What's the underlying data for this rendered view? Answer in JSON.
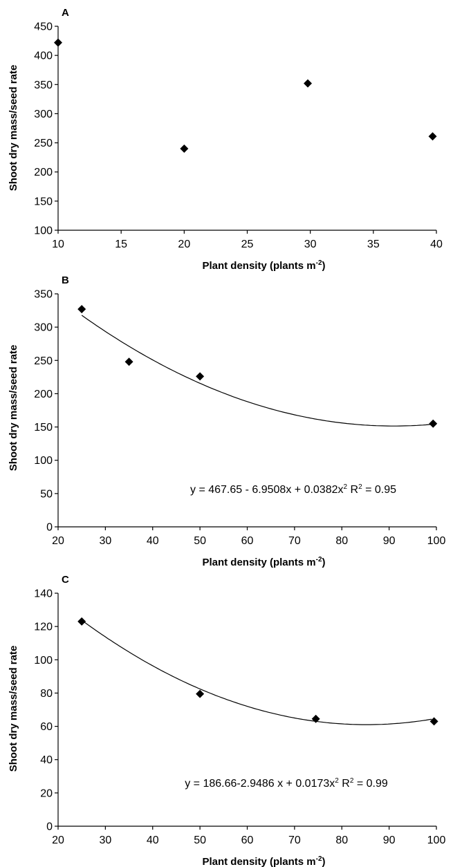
{
  "chart_data": [
    {
      "type": "scatter",
      "panel_label": "A",
      "xlabel": "Plant density (plants m",
      "xlabel_sup": "-2",
      "xlabel_end": ")",
      "ylabel": "Shoot dry mass/seed rate",
      "xlim": [
        10,
        40
      ],
      "ylim": [
        100,
        450
      ],
      "xticks": [
        10,
        15,
        20,
        25,
        30,
        35,
        40
      ],
      "yticks": [
        100,
        150,
        200,
        250,
        300,
        350,
        400,
        450
      ],
      "points": [
        {
          "x": 10,
          "y": 422
        },
        {
          "x": 20,
          "y": 240
        },
        {
          "x": 29.8,
          "y": 352
        },
        {
          "x": 39.7,
          "y": 261
        }
      ],
      "grid": false,
      "legend": "none"
    },
    {
      "type": "scatter",
      "panel_label": "B",
      "xlabel": "Plant density (plants m",
      "xlabel_sup": "-2",
      "xlabel_end": ")",
      "ylabel": "Shoot dry mass/seed rate",
      "xlim": [
        20,
        100
      ],
      "ylim": [
        0,
        350
      ],
      "xticks": [
        20,
        30,
        40,
        50,
        60,
        70,
        80,
        90,
        100
      ],
      "yticks": [
        0,
        50,
        100,
        150,
        200,
        250,
        300,
        350
      ],
      "points": [
        {
          "x": 25,
          "y": 327
        },
        {
          "x": 35,
          "y": 248
        },
        {
          "x": 50,
          "y": 226
        },
        {
          "x": 99.3,
          "y": 155
        }
      ],
      "fit": {
        "a": 467.65,
        "b": -6.9508,
        "c": 0.0382,
        "x_from": 25,
        "x_to": 99
      },
      "equation_parts": [
        "y = 467.65 - 6.9508x + 0.0382x",
        "2",
        " R",
        "2",
        " = 0.95"
      ],
      "grid": false,
      "legend": "none"
    },
    {
      "type": "scatter",
      "panel_label": "C",
      "xlabel": "Plant density (plants m",
      "xlabel_sup": "-2",
      "xlabel_end": ")",
      "ylabel": "Shoot dry mass/seed rate",
      "xlim": [
        20,
        100
      ],
      "ylim": [
        0,
        140
      ],
      "xticks": [
        20,
        30,
        40,
        50,
        60,
        70,
        80,
        90,
        100
      ],
      "yticks": [
        0,
        20,
        40,
        60,
        80,
        100,
        120,
        140
      ],
      "points": [
        {
          "x": 25,
          "y": 123
        },
        {
          "x": 50,
          "y": 79.5
        },
        {
          "x": 74.5,
          "y": 64.5
        },
        {
          "x": 99.5,
          "y": 63
        }
      ],
      "fit": {
        "a": 186.66,
        "b": -2.9486,
        "c": 0.0173,
        "x_from": 25,
        "x_to": 99
      },
      "equation_parts": [
        "y = 186.66-2.9486 x + 0.0173x",
        "2",
        " R",
        "2",
        " = 0.99"
      ],
      "grid": false,
      "legend": "none"
    }
  ]
}
